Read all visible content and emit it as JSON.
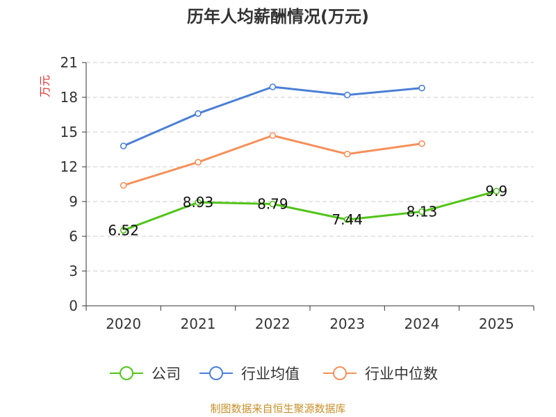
{
  "chart_data": {
    "type": "line",
    "title": "历年人均薪酬情况(万元)",
    "ylabel": "万元",
    "xlabel": "",
    "categories": [
      "2020",
      "2021",
      "2022",
      "2023",
      "2024",
      "2025"
    ],
    "ylim": [
      0,
      21
    ],
    "yticks": [
      "0",
      "3",
      "6",
      "9",
      "12",
      "15",
      "18",
      "21"
    ],
    "grid": true,
    "legend_position": "bottom",
    "series": [
      {
        "name": "公司",
        "color": "#52c41a",
        "values": [
          6.52,
          8.93,
          8.79,
          7.44,
          8.13,
          9.9
        ],
        "labels": [
          "6.52",
          "8.93",
          "8.79",
          "7.44",
          "8.13",
          "9.9"
        ]
      },
      {
        "name": "行业均值",
        "color": "#4a7fd6",
        "values": [
          13.8,
          16.6,
          18.9,
          18.2,
          18.8,
          null
        ]
      },
      {
        "name": "行业中位数",
        "color": "#f5905a",
        "values": [
          10.4,
          12.4,
          14.7,
          13.1,
          14.0,
          null
        ]
      }
    ],
    "source": "制图数据来自恒生聚源数据库"
  }
}
